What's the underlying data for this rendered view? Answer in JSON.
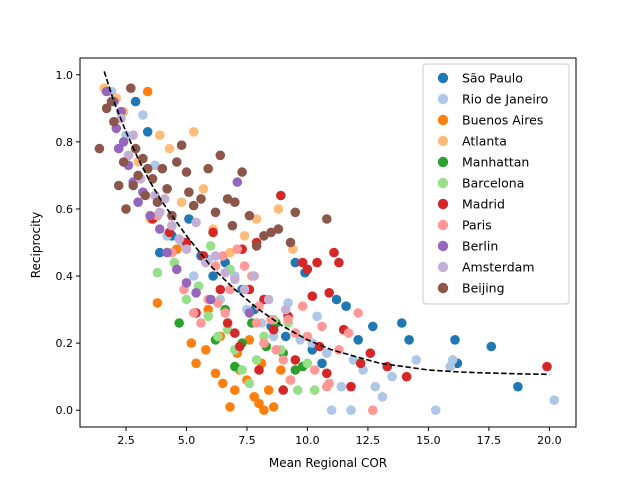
{
  "chart_data": {
    "type": "scatter",
    "title": "",
    "xlabel": "Mean Regional COR",
    "ylabel": "Reciprocity",
    "xlim": [
      0.6,
      21.1
    ],
    "ylim": [
      -0.05,
      1.05
    ],
    "xticks": [
      "2.5",
      "5.0",
      "7.5",
      "10.0",
      "12.5",
      "15.0",
      "17.5",
      "20.0"
    ],
    "yticks": [
      "0.0",
      "0.2",
      "0.4",
      "0.6",
      "0.8",
      "1.0"
    ],
    "xtick_values": [
      2.5,
      5.0,
      7.5,
      10.0,
      12.5,
      15.0,
      17.5,
      20.0
    ],
    "ytick_values": [
      0.0,
      0.2,
      0.4,
      0.6,
      0.8,
      1.0
    ],
    "grid": false,
    "legend_position": "top-right",
    "series": [
      {
        "name": "São Paulo",
        "color": "#1f77b4",
        "points": [
          [
            2.9,
            0.92
          ],
          [
            3.4,
            0.83
          ],
          [
            3.9,
            0.47
          ],
          [
            4.4,
            0.52
          ],
          [
            5.1,
            0.57
          ],
          [
            5.6,
            0.46
          ],
          [
            6.1,
            0.4
          ],
          [
            6.6,
            0.44
          ],
          [
            7.3,
            0.36
          ],
          [
            7.8,
            0.3
          ],
          [
            8.5,
            0.25
          ],
          [
            9.1,
            0.22
          ],
          [
            9.5,
            0.44
          ],
          [
            9.9,
            0.41
          ],
          [
            10.2,
            0.18
          ],
          [
            10.6,
            0.14
          ],
          [
            11.2,
            0.33
          ],
          [
            11.6,
            0.31
          ],
          [
            12.1,
            0.21
          ],
          [
            12.7,
            0.25
          ],
          [
            13.9,
            0.26
          ],
          [
            14.2,
            0.21
          ],
          [
            16.1,
            0.21
          ],
          [
            16.2,
            0.14
          ],
          [
            17.6,
            0.19
          ],
          [
            18.7,
            0.07
          ]
        ]
      },
      {
        "name": "Rio de Janeiro",
        "color": "#aec7e8",
        "points": [
          [
            1.9,
            0.95
          ],
          [
            2.5,
            0.82
          ],
          [
            3.2,
            0.88
          ],
          [
            3.7,
            0.73
          ],
          [
            4.2,
            0.52
          ],
          [
            4.8,
            0.5
          ],
          [
            5.3,
            0.4
          ],
          [
            5.9,
            0.45
          ],
          [
            6.4,
            0.33
          ],
          [
            7.0,
            0.4
          ],
          [
            7.5,
            0.3
          ],
          [
            8.1,
            0.26
          ],
          [
            8.6,
            0.22
          ],
          [
            9.2,
            0.32
          ],
          [
            9.7,
            0.21
          ],
          [
            10.2,
            0.2
          ],
          [
            10.8,
            0.17
          ],
          [
            11.4,
            0.07
          ],
          [
            11.9,
            0.15
          ],
          [
            12.3,
            0.12
          ],
          [
            12.8,
            0.07
          ],
          [
            13.1,
            0.04
          ],
          [
            13.5,
            0.1
          ],
          [
            14.5,
            0.15
          ],
          [
            15.3,
            0.0
          ],
          [
            15.9,
            0.13
          ],
          [
            16.0,
            0.15
          ],
          [
            20.2,
            0.03
          ],
          [
            10.4,
            0.28
          ],
          [
            11.8,
            0.0
          ],
          [
            11.0,
            0.0
          ]
        ]
      },
      {
        "name": "Buenos Aires",
        "color": "#ff7f0e",
        "points": [
          [
            3.4,
            0.95
          ],
          [
            3.8,
            0.32
          ],
          [
            4.6,
            0.48
          ],
          [
            5.2,
            0.2
          ],
          [
            5.4,
            0.14
          ],
          [
            5.8,
            0.18
          ],
          [
            6.2,
            0.11
          ],
          [
            6.5,
            0.08
          ],
          [
            6.8,
            0.01
          ],
          [
            7.0,
            0.06
          ],
          [
            7.2,
            0.12
          ],
          [
            7.5,
            0.09
          ],
          [
            7.8,
            0.04
          ],
          [
            8.0,
            0.02
          ],
          [
            8.2,
            0.0
          ],
          [
            8.4,
            0.06
          ],
          [
            8.6,
            0.01
          ],
          [
            8.9,
            0.12
          ],
          [
            9.3,
            0.09
          ],
          [
            5.9,
            0.3
          ],
          [
            6.4,
            0.22
          ],
          [
            7.1,
            0.17
          ],
          [
            7.6,
            0.21
          ],
          [
            8.1,
            0.14
          ]
        ]
      },
      {
        "name": "Atlanta",
        "color": "#ffbb78",
        "points": [
          [
            1.6,
            0.96
          ],
          [
            2.1,
            0.93
          ],
          [
            2.4,
            0.89
          ],
          [
            3.0,
            0.74
          ],
          [
            3.5,
            0.57
          ],
          [
            3.9,
            0.82
          ],
          [
            4.3,
            0.78
          ],
          [
            4.8,
            0.62
          ],
          [
            5.3,
            0.83
          ],
          [
            5.7,
            0.66
          ],
          [
            6.1,
            0.54
          ],
          [
            6.8,
            0.47
          ],
          [
            7.4,
            0.52
          ],
          [
            7.9,
            0.57
          ],
          [
            8.8,
            0.6
          ],
          [
            9.4,
            0.48
          ]
        ]
      },
      {
        "name": "Manhattan",
        "color": "#2ca02c",
        "points": [
          [
            4.7,
            0.26
          ],
          [
            6.2,
            0.21
          ],
          [
            6.6,
            0.3
          ],
          [
            7.0,
            0.13
          ],
          [
            7.3,
            0.2
          ],
          [
            7.7,
            0.26
          ],
          [
            8.3,
            0.19
          ],
          [
            8.7,
            0.26
          ],
          [
            9.0,
            0.17
          ],
          [
            9.5,
            0.12
          ],
          [
            9.8,
            0.13
          ]
        ]
      },
      {
        "name": "Barcelona",
        "color": "#98df8a",
        "points": [
          [
            3.8,
            0.41
          ],
          [
            4.5,
            0.44
          ],
          [
            5.0,
            0.33
          ],
          [
            5.5,
            0.37
          ],
          [
            5.9,
            0.28
          ],
          [
            6.3,
            0.22
          ],
          [
            6.7,
            0.24
          ],
          [
            7.0,
            0.18
          ],
          [
            7.3,
            0.12
          ],
          [
            7.6,
            0.08
          ],
          [
            7.9,
            0.15
          ],
          [
            8.2,
            0.22
          ],
          [
            8.6,
            0.27
          ],
          [
            8.9,
            0.18
          ],
          [
            9.2,
            0.26
          ],
          [
            9.6,
            0.06
          ],
          [
            10.0,
            0.14
          ],
          [
            10.3,
            0.06
          ],
          [
            6.0,
            0.49
          ],
          [
            6.8,
            0.42
          ]
        ]
      },
      {
        "name": "Madrid",
        "color": "#d62728",
        "points": [
          [
            3.6,
            0.57
          ],
          [
            4.3,
            0.53
          ],
          [
            5.0,
            0.5
          ],
          [
            5.4,
            0.29
          ],
          [
            5.7,
            0.46
          ],
          [
            6.1,
            0.53
          ],
          [
            6.4,
            0.36
          ],
          [
            6.7,
            0.26
          ],
          [
            7.0,
            0.23
          ],
          [
            7.2,
            0.19
          ],
          [
            7.6,
            0.36
          ],
          [
            7.9,
            0.5
          ],
          [
            8.2,
            0.33
          ],
          [
            8.6,
            0.24
          ],
          [
            8.9,
            0.64
          ],
          [
            9.2,
            0.28
          ],
          [
            9.5,
            0.15
          ],
          [
            9.8,
            0.44
          ],
          [
            10.0,
            0.42
          ],
          [
            10.2,
            0.34
          ],
          [
            10.5,
            0.19
          ],
          [
            10.8,
            0.11
          ],
          [
            10.9,
            0.35
          ],
          [
            11.1,
            0.47
          ],
          [
            11.3,
            0.44
          ],
          [
            11.5,
            0.24
          ],
          [
            11.8,
            0.07
          ],
          [
            12.2,
            0.14
          ],
          [
            12.6,
            0.17
          ],
          [
            13.3,
            0.13
          ],
          [
            14.1,
            0.1
          ],
          [
            19.9,
            0.13
          ],
          [
            7.3,
            0.48
          ],
          [
            8.0,
            0.12
          ],
          [
            9.0,
            0.06
          ],
          [
            10.4,
            0.44
          ]
        ]
      },
      {
        "name": "Paris",
        "color": "#ff9896",
        "points": [
          [
            3.8,
            0.58
          ],
          [
            4.4,
            0.47
          ],
          [
            4.9,
            0.36
          ],
          [
            5.3,
            0.29
          ],
          [
            5.6,
            0.26
          ],
          [
            5.9,
            0.33
          ],
          [
            6.2,
            0.43
          ],
          [
            6.5,
            0.46
          ],
          [
            6.8,
            0.36
          ],
          [
            7.1,
            0.48
          ],
          [
            7.4,
            0.43
          ],
          [
            7.7,
            0.4
          ],
          [
            8.0,
            0.31
          ],
          [
            8.2,
            0.2
          ],
          [
            8.5,
            0.27
          ],
          [
            8.7,
            0.18
          ],
          [
            9.0,
            0.15
          ],
          [
            9.2,
            0.27
          ],
          [
            9.5,
            0.23
          ],
          [
            9.8,
            0.31
          ],
          [
            10.0,
            0.22
          ],
          [
            10.3,
            0.12
          ],
          [
            10.6,
            0.25
          ],
          [
            10.9,
            0.08
          ],
          [
            11.3,
            0.18
          ],
          [
            11.7,
            0.23
          ],
          [
            12.1,
            0.29
          ],
          [
            12.7,
            0.0
          ],
          [
            6.3,
            0.32
          ],
          [
            7.9,
            0.26
          ],
          [
            6.6,
            0.29
          ],
          [
            9.3,
            0.09
          ],
          [
            10.8,
            0.07
          ]
        ]
      },
      {
        "name": "Berlin",
        "color": "#9467bd",
        "points": [
          [
            1.7,
            0.95
          ],
          [
            2.0,
            0.92
          ],
          [
            2.1,
            0.84
          ],
          [
            2.3,
            0.89
          ],
          [
            2.4,
            0.8
          ],
          [
            2.6,
            0.73
          ],
          [
            2.8,
            0.68
          ],
          [
            3.0,
            0.62
          ],
          [
            3.2,
            0.65
          ],
          [
            3.5,
            0.58
          ],
          [
            3.9,
            0.54
          ],
          [
            4.2,
            0.47
          ],
          [
            4.6,
            0.42
          ],
          [
            5.0,
            0.38
          ],
          [
            5.4,
            0.35
          ],
          [
            6.0,
            0.33
          ],
          [
            7.1,
            0.68
          ],
          [
            7.6,
            0.29
          ],
          [
            2.2,
            0.78
          ]
        ]
      },
      {
        "name": "Amsterdam",
        "color": "#c5b0d5",
        "points": [
          [
            2.3,
            0.87
          ],
          [
            2.6,
            0.76
          ],
          [
            2.8,
            0.82
          ],
          [
            3.1,
            0.69
          ],
          [
            3.4,
            0.72
          ],
          [
            3.7,
            0.64
          ],
          [
            3.9,
            0.59
          ],
          [
            4.1,
            0.63
          ],
          [
            4.4,
            0.55
          ],
          [
            4.7,
            0.51
          ],
          [
            5.0,
            0.48
          ],
          [
            5.4,
            0.56
          ],
          [
            5.8,
            0.44
          ],
          [
            6.2,
            0.46
          ],
          [
            6.6,
            0.41
          ],
          [
            7.0,
            0.39
          ],
          [
            7.4,
            0.36
          ],
          [
            7.8,
            0.4
          ],
          [
            8.4,
            0.33
          ],
          [
            9.1,
            0.3
          ]
        ]
      },
      {
        "name": "Beijing",
        "color": "#8c564b",
        "points": [
          [
            1.4,
            0.78
          ],
          [
            1.7,
            0.9
          ],
          [
            1.9,
            0.92
          ],
          [
            2.0,
            0.86
          ],
          [
            2.2,
            0.67
          ],
          [
            2.4,
            0.74
          ],
          [
            2.5,
            0.6
          ],
          [
            2.7,
            0.96
          ],
          [
            2.8,
            0.67
          ],
          [
            3.0,
            0.7
          ],
          [
            3.2,
            0.75
          ],
          [
            3.4,
            0.72
          ],
          [
            3.6,
            0.69
          ],
          [
            3.8,
            0.62
          ],
          [
            4.0,
            0.72
          ],
          [
            4.2,
            0.66
          ],
          [
            4.4,
            0.58
          ],
          [
            4.6,
            0.74
          ],
          [
            4.8,
            0.79
          ],
          [
            5.0,
            0.71
          ],
          [
            5.3,
            0.61
          ],
          [
            5.6,
            0.63
          ],
          [
            5.9,
            0.72
          ],
          [
            6.2,
            0.59
          ],
          [
            6.4,
            0.76
          ],
          [
            6.7,
            0.63
          ],
          [
            7.0,
            0.62
          ],
          [
            7.3,
            0.71
          ],
          [
            7.6,
            0.58
          ],
          [
            7.9,
            0.49
          ],
          [
            8.2,
            0.52
          ],
          [
            8.5,
            0.53
          ],
          [
            8.8,
            0.54
          ],
          [
            9.3,
            0.5
          ],
          [
            9.5,
            0.59
          ],
          [
            10.8,
            0.57
          ],
          [
            6.9,
            0.55
          ],
          [
            5.1,
            0.65
          ],
          [
            3.3,
            0.64
          ],
          [
            2.9,
            0.78
          ]
        ]
      }
    ],
    "fit_curve": {
      "style": "dashed",
      "color": "#000000",
      "x": [
        1.6,
        2.0,
        2.5,
        3.0,
        3.5,
        4.0,
        5.0,
        6.0,
        7.0,
        8.0,
        9.0,
        10.0,
        11.0,
        12.0,
        13.0,
        14.0,
        15.0,
        16.0,
        17.0,
        18.0,
        19.0,
        20.0
      ],
      "y": [
        1.01,
        0.92,
        0.83,
        0.75,
        0.68,
        0.62,
        0.52,
        0.43,
        0.36,
        0.3,
        0.25,
        0.21,
        0.18,
        0.16,
        0.14,
        0.13,
        0.12,
        0.115,
        0.112,
        0.11,
        0.108,
        0.107
      ]
    }
  }
}
